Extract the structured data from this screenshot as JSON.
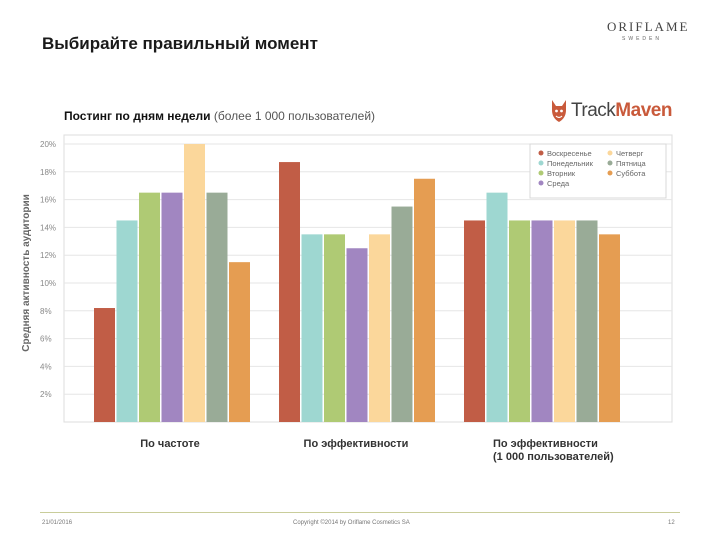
{
  "slide": {
    "title": "Выбирайте правильный момент",
    "brand_name": "ORIFLAME",
    "brand_sub": "SWEDEN"
  },
  "logo": {
    "text_track": "Track",
    "text_maven": "Maven",
    "icon": "corgi-dog-icon"
  },
  "footer": {
    "date": "21/01/2016",
    "copyright": "Copyright ©2014 by Oriflame Cosmetics SA",
    "page": "12"
  },
  "colors": {
    "background": "#ffffff",
    "Воскресенье": "#c15d46",
    "Понедельник": "#9ed7d1",
    "Вторник": "#afca74",
    "Среда": "#a186c1",
    "Четверг": "#fbd79b",
    "Пятница": "#99ab97",
    "Суббота": "#e59d52"
  },
  "chart_data": {
    "type": "bar",
    "title": "Постинг по дням недели",
    "subtitle": "(более 1 000 пользователей)",
    "ylabel": "Средняя активность аудитории",
    "xlabel": "",
    "ylim": [
      0,
      20
    ],
    "yticks": [
      "2%",
      "4%",
      "6%",
      "8%",
      "10%",
      "12%",
      "14%",
      "16%",
      "18%",
      "20%"
    ],
    "ytick_values": [
      2,
      4,
      6,
      8,
      10,
      12,
      14,
      16,
      18,
      20
    ],
    "grid": true,
    "legend_position": "top-right",
    "categories": [
      "По частоте",
      "По эффективности",
      "По эффективности\n(1 000 пользователей)"
    ],
    "series": [
      {
        "name": "Воскресенье",
        "values": [
          8.2,
          18.7,
          14.5
        ]
      },
      {
        "name": "Понедельник",
        "values": [
          14.5,
          13.5,
          16.5
        ]
      },
      {
        "name": "Вторник",
        "values": [
          16.5,
          13.5,
          14.5
        ]
      },
      {
        "name": "Среда",
        "values": [
          16.5,
          12.5,
          14.5
        ]
      },
      {
        "name": "Четверг",
        "values": [
          20.0,
          13.5,
          14.5
        ]
      },
      {
        "name": "Пятница",
        "values": [
          16.5,
          15.5,
          14.5
        ]
      },
      {
        "name": "Суббота",
        "values": [
          11.5,
          17.5,
          13.5
        ]
      }
    ],
    "legend_order": [
      "Воскресенье",
      "Понедельник",
      "Вторник",
      "Среда",
      "Четверг",
      "Пятница",
      "Суббота"
    ]
  }
}
